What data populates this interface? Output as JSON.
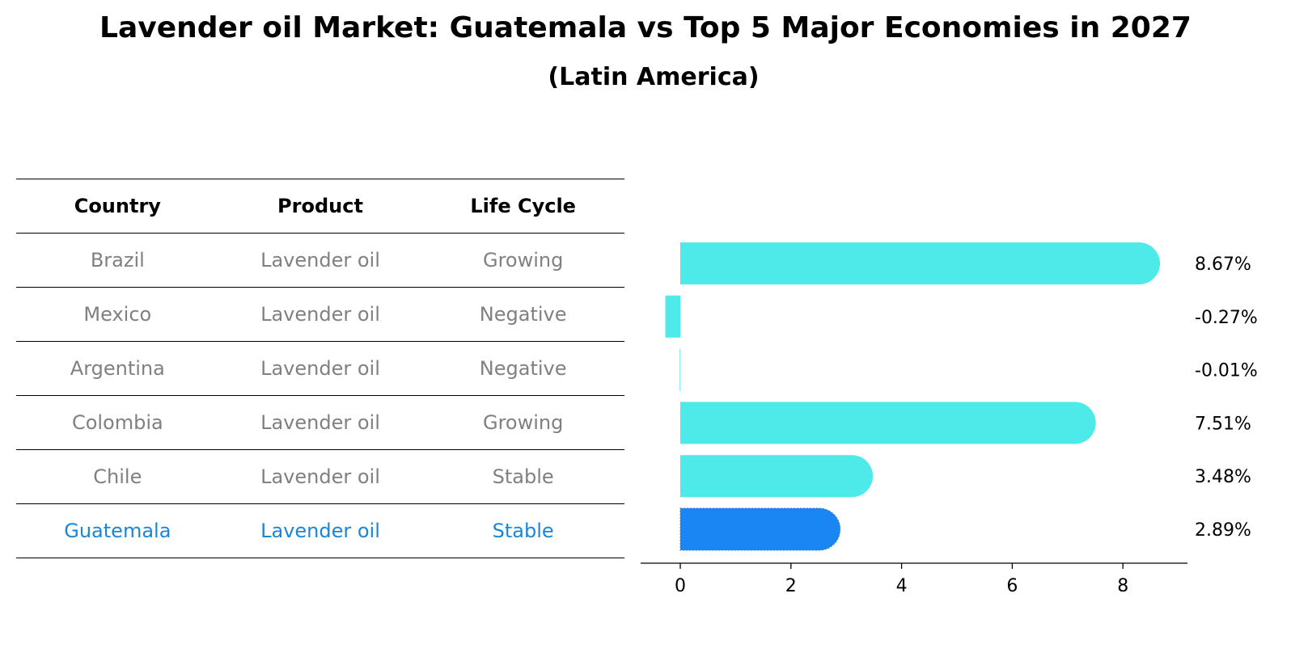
{
  "title": "Lavender oil Market: Guatemala vs Top 5 Major Economies in 2027",
  "subtitle": "(Latin America)",
  "table": {
    "headers": [
      "Country",
      "Product",
      "Life Cycle"
    ],
    "rows": [
      {
        "country": "Brazil",
        "product": "Lavender oil",
        "life_cycle": "Growing",
        "highlight": false
      },
      {
        "country": "Mexico",
        "product": "Lavender oil",
        "life_cycle": "Negative",
        "highlight": false
      },
      {
        "country": "Argentina",
        "product": "Lavender oil",
        "life_cycle": "Negative",
        "highlight": false
      },
      {
        "country": "Colombia",
        "product": "Lavender oil",
        "life_cycle": "Growing",
        "highlight": false
      },
      {
        "country": "Chile",
        "product": "Lavender oil",
        "life_cycle": "Stable",
        "highlight": false
      },
      {
        "country": "Guatemala",
        "product": "Lavender oil",
        "life_cycle": "Stable",
        "highlight": true
      }
    ]
  },
  "colors": {
    "bar": "#4eeaea",
    "highlight_bar": "#1a86f4",
    "highlight_text": "#1a86d8",
    "muted_text": "#808080"
  },
  "chart_data": {
    "type": "bar",
    "orientation": "horizontal",
    "categories": [
      "Brazil",
      "Mexico",
      "Argentina",
      "Colombia",
      "Chile",
      "Guatemala"
    ],
    "values": [
      8.67,
      -0.27,
      -0.01,
      7.51,
      3.48,
      2.89
    ],
    "labels": [
      "8.67%",
      "-0.27%",
      "-0.01%",
      "7.51%",
      "3.48%",
      "2.89%"
    ],
    "highlight": "Guatemala",
    "xticks": [
      0,
      2,
      4,
      6,
      8
    ],
    "xlim": [
      -0.72,
      9.1
    ]
  }
}
